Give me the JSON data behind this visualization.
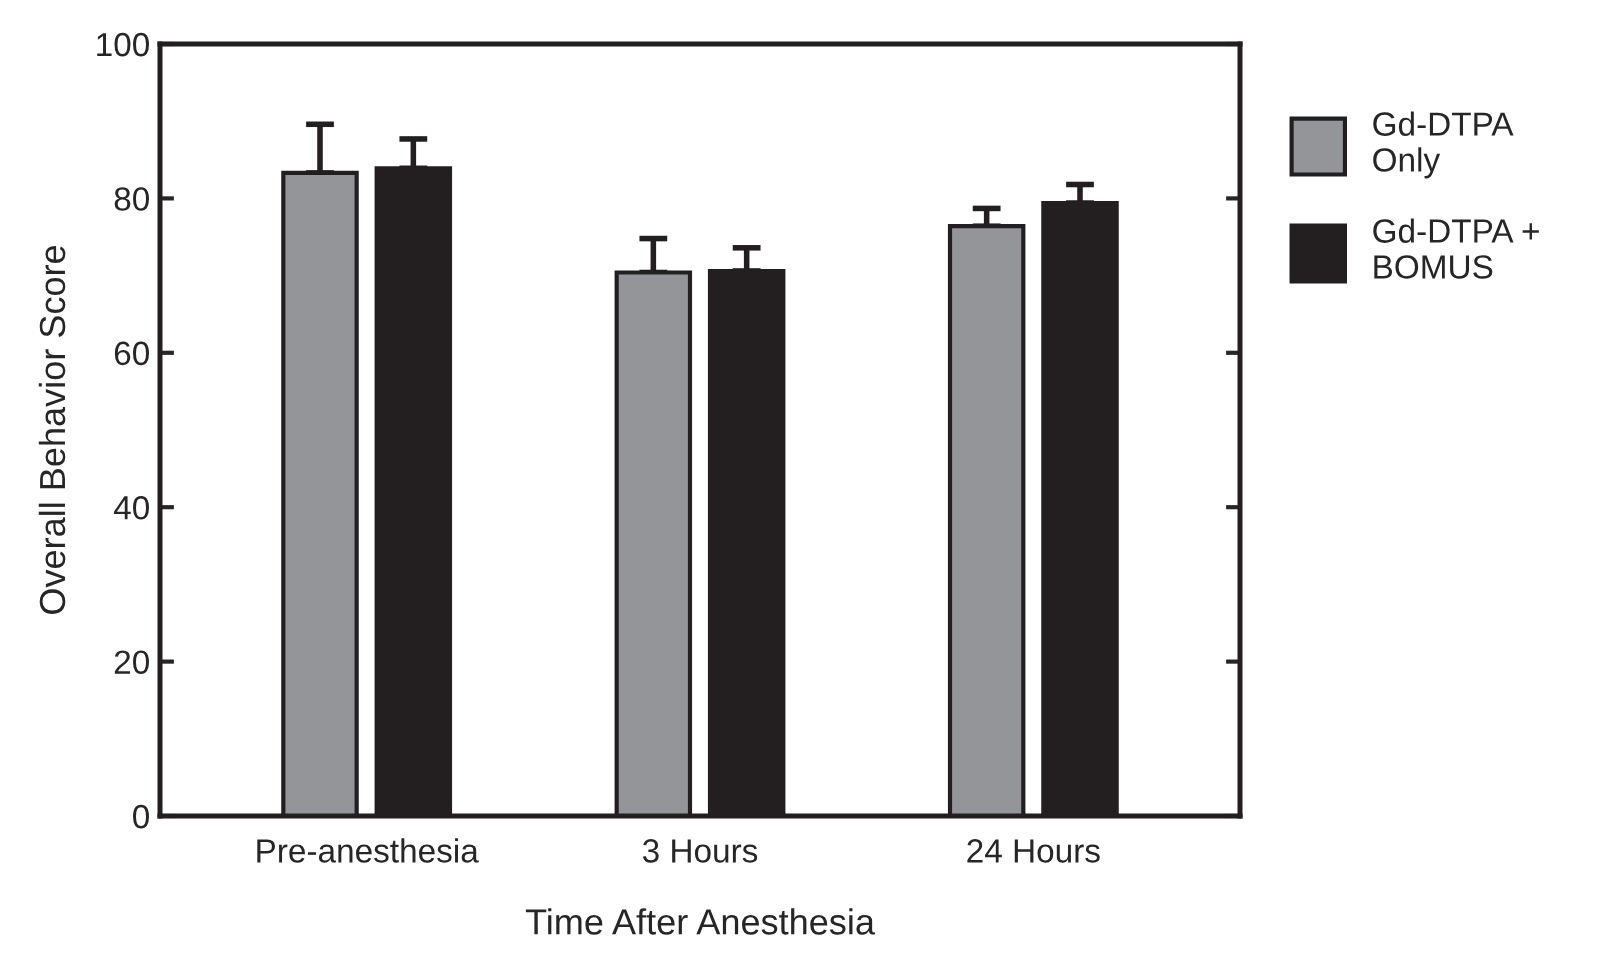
{
  "chart_data": {
    "type": "bar",
    "xlabel": "Time After Anesthesia",
    "ylabel": "Overall Behavior Score",
    "categories": [
      "Pre-anesthesia",
      "3 Hours",
      "24 Hours"
    ],
    "series": [
      {
        "name": "Gd-DTPA\nOnly",
        "color": "#939598",
        "values": [
          83.3,
          70.4,
          76.4
        ],
        "errors": [
          [
            83.3,
            89.6
          ],
          [
            70.4,
            74.8
          ],
          [
            76.4,
            78.7
          ]
        ]
      },
      {
        "name": "Gd-DTPA +\nBOMUS",
        "color": "#231f20",
        "values": [
          83.9,
          70.6,
          79.4
        ],
        "errors": [
          [
            83.9,
            87.7
          ],
          [
            70.6,
            73.6
          ],
          [
            79.4,
            81.8
          ]
        ]
      }
    ],
    "ylim": [
      0,
      100
    ],
    "yticks": [
      0,
      20,
      40,
      60,
      80,
      100
    ],
    "grid": false,
    "legend": "right"
  }
}
